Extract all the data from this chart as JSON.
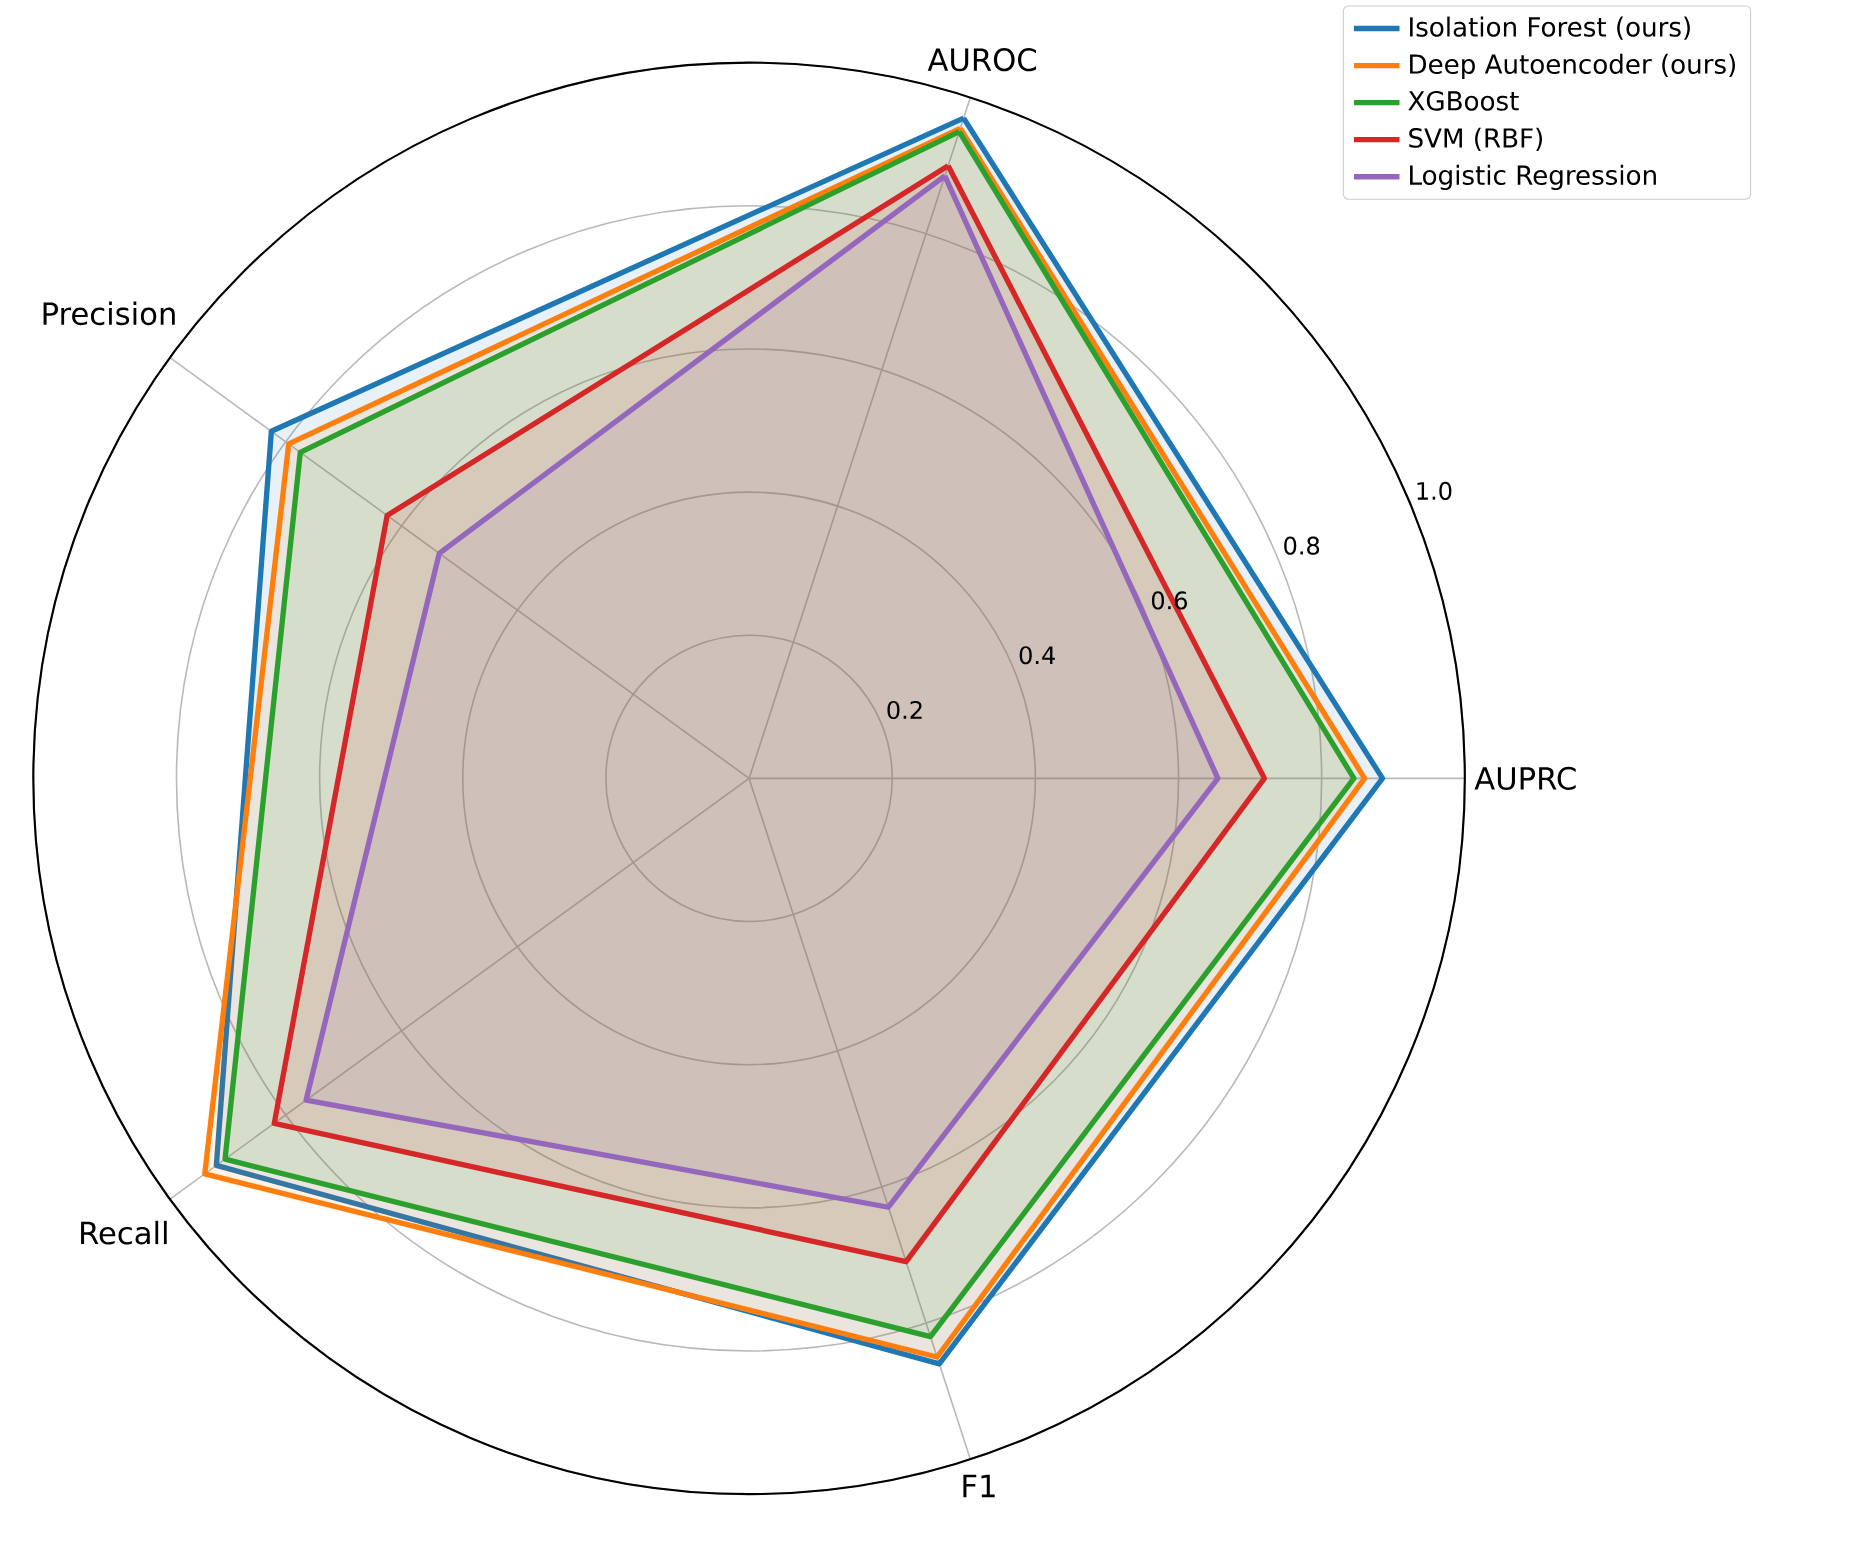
{
  "chart_data": {
    "type": "radar",
    "categories": [
      "AUROC",
      "AUPRC",
      "F1",
      "Recall",
      "Precision"
    ],
    "series": [
      {
        "name": "Isolation Forest (ours)",
        "color": "#1f77b4",
        "values": [
          0.97,
          0.885,
          0.86,
          0.92,
          0.825
        ]
      },
      {
        "name": "Deep Autoencoder (ours)",
        "color": "#ff7f0e",
        "values": [
          0.955,
          0.86,
          0.85,
          0.94,
          0.795
        ]
      },
      {
        "name": "XGBoost",
        "color": "#2ca02c",
        "values": [
          0.95,
          0.845,
          0.82,
          0.905,
          0.775
        ]
      },
      {
        "name": "SVM (RBF)",
        "color": "#d62728",
        "values": [
          0.9,
          0.72,
          0.71,
          0.82,
          0.625
        ]
      },
      {
        "name": "Logistic Regression",
        "color": "#9467bd",
        "values": [
          0.885,
          0.655,
          0.63,
          0.765,
          0.535
        ]
      }
    ],
    "ylim": [
      0,
      1
    ],
    "yticks": [
      0.2,
      0.4,
      0.6,
      0.8,
      {
        "value": 1,
        "label": "1.0"
      }
    ],
    "grid": true,
    "legend": "top right"
  }
}
